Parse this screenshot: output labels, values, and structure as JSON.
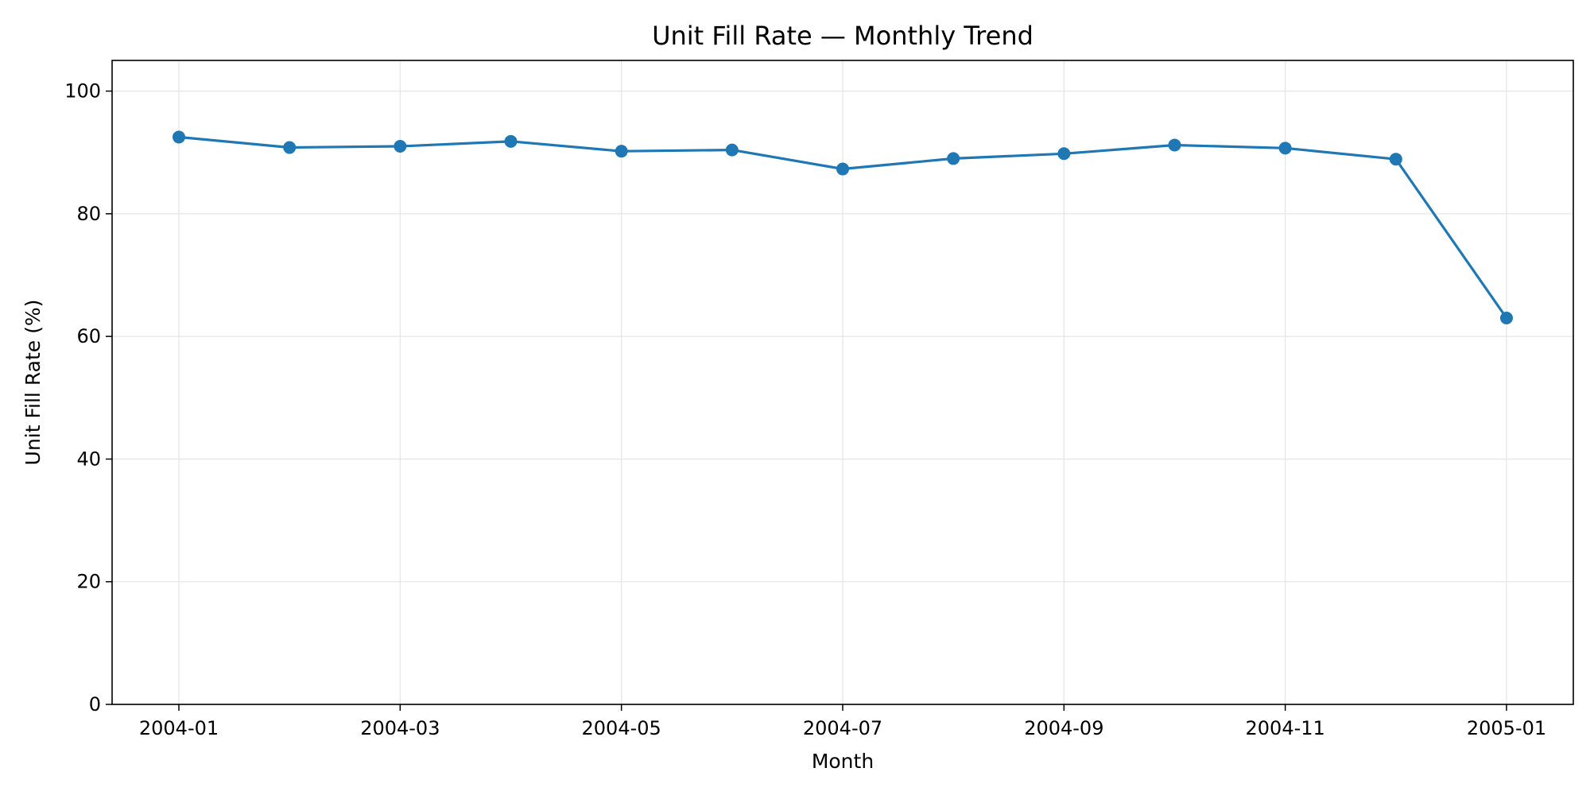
{
  "chart_data": {
    "type": "line",
    "title": "Unit Fill Rate — Monthly Trend",
    "xlabel": "Month",
    "ylabel": "Unit Fill Rate (%)",
    "x": [
      "2004-01",
      "2004-02",
      "2004-03",
      "2004-04",
      "2004-05",
      "2004-06",
      "2004-07",
      "2004-08",
      "2004-09",
      "2004-10",
      "2004-11",
      "2004-12",
      "2005-01"
    ],
    "series": [
      {
        "values": [
          92.5,
          90.8,
          91.0,
          91.8,
          90.2,
          90.4,
          87.3,
          89.0,
          89.8,
          91.2,
          90.7,
          88.9,
          63.0
        ]
      }
    ],
    "x_tick_labels": [
      "2004-01",
      "2004-03",
      "2004-05",
      "2004-07",
      "2004-09",
      "2004-11",
      "2005-01"
    ],
    "y_ticks": [
      0,
      20,
      40,
      60,
      80,
      100
    ],
    "ylim": [
      0,
      105
    ],
    "grid": true,
    "line_color": "#1f77b4",
    "grid_color": "#e6e6e6"
  }
}
